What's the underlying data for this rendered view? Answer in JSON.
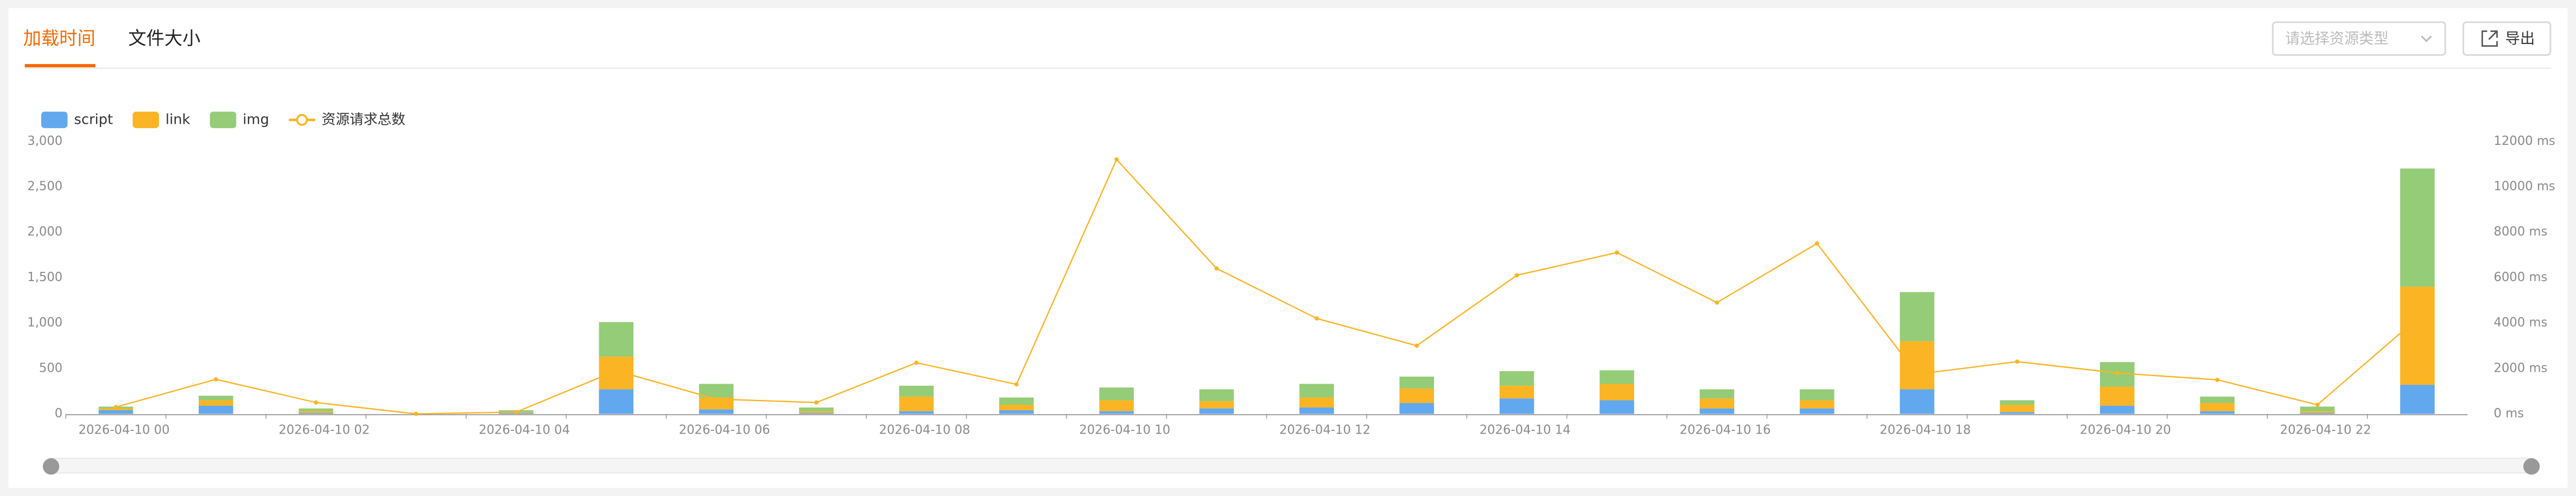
{
  "tabs": [
    "加载时间",
    "文件大小"
  ],
  "select_placeholder": "请选择资源类型",
  "export_button": "导出",
  "chart_data": {
    "type": "bar",
    "stacked": true,
    "categories": [
      "2026-04-10 00",
      null,
      "2026-04-10 02",
      null,
      "2026-04-10 04",
      null,
      "2026-04-10 06",
      null,
      "2026-04-10 08",
      null,
      "2026-04-10 10",
      null,
      "2026-04-10 12",
      null,
      "2026-04-10 14",
      null,
      "2026-04-10 16",
      null,
      "2026-04-10 18",
      null,
      "2026-04-10 20",
      null,
      "2026-04-10 22",
      null
    ],
    "series": [
      {
        "name": "script",
        "color": "#62a8ef",
        "values": [
          40,
          90,
          10,
          0,
          10,
          270,
          50,
          10,
          30,
          40,
          30,
          60,
          70,
          120,
          170,
          150,
          60,
          60,
          270,
          20,
          90,
          30,
          10,
          320
        ]
      },
      {
        "name": "link",
        "color": "#fbb424",
        "values": [
          20,
          60,
          20,
          0,
          10,
          360,
          130,
          20,
          160,
          60,
          120,
          80,
          110,
          160,
          140,
          180,
          110,
          90,
          530,
          80,
          210,
          90,
          20,
          1080
        ]
      },
      {
        "name": "img",
        "color": "#94cc77",
        "values": [
          20,
          50,
          30,
          0,
          20,
          380,
          150,
          40,
          120,
          80,
          140,
          130,
          150,
          130,
          160,
          150,
          100,
          120,
          540,
          50,
          270,
          70,
          50,
          1300
        ]
      },
      {
        "name": "资源请求总数",
        "type": "line",
        "axis": "y2",
        "color": "#fbb424",
        "values": [
          300,
          1520,
          500,
          0,
          80,
          1900,
          650,
          500,
          2250,
          1300,
          11200,
          6400,
          4200,
          3000,
          6100,
          7100,
          4900,
          7500,
          1750,
          2300,
          1800,
          1500,
          400,
          4200
        ]
      }
    ],
    "ylim": [
      0,
      3000
    ],
    "yticks": [
      0,
      500,
      {
        "value": 1000,
        "label": "1,000"
      },
      {
        "value": 1500,
        "label": "1,500"
      },
      {
        "value": 2000,
        "label": "2,000"
      },
      {
        "value": 2500,
        "label": "2,500"
      },
      {
        "value": 3000,
        "label": "3,000"
      }
    ],
    "y2lim": [
      0,
      12000
    ],
    "y2ticks": [
      {
        "value": 0,
        "label": "0 ms"
      },
      {
        "value": 2000,
        "label": "2000 ms"
      },
      {
        "value": 4000,
        "label": "4000 ms"
      },
      {
        "value": 6000,
        "label": "6000 ms"
      },
      {
        "value": 8000,
        "label": "8000 ms"
      },
      {
        "value": 10000,
        "label": "10000 ms"
      },
      {
        "value": 12000,
        "label": "12000 ms"
      }
    ],
    "grid": false
  }
}
